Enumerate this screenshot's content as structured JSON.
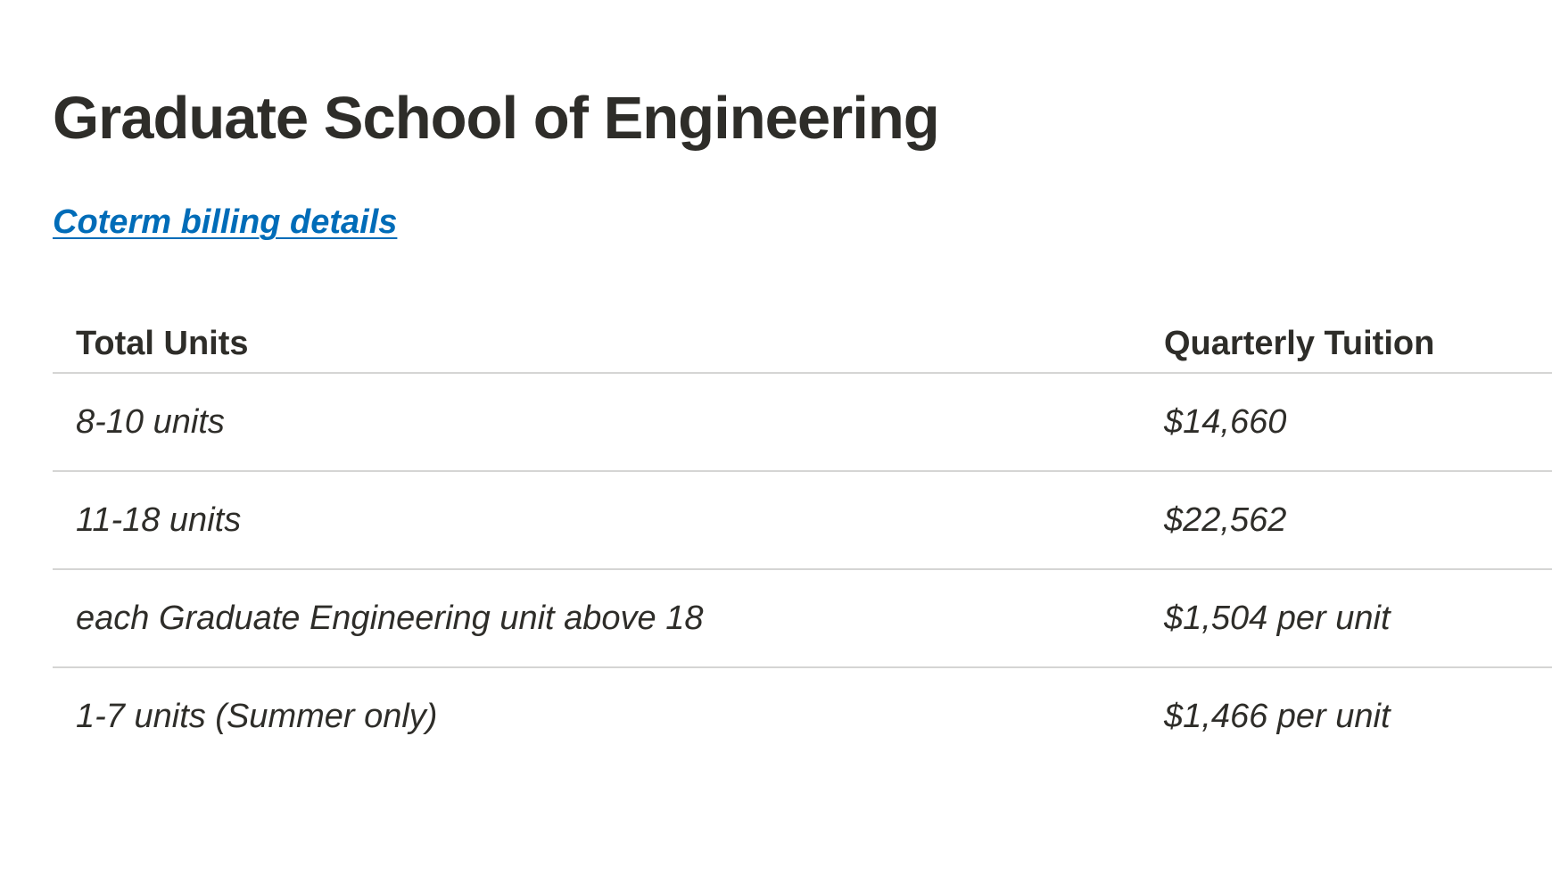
{
  "page": {
    "title": "Graduate School of Engineering",
    "link_label": "Coterm billing details"
  },
  "table": {
    "headers": {
      "units": "Total Units",
      "tuition": "Quarterly Tuition"
    },
    "rows": [
      {
        "units": "8-10 units",
        "tuition": "$14,660"
      },
      {
        "units": "11-18 units",
        "tuition": "$22,562"
      },
      {
        "units": "each Graduate Engineering unit above 18",
        "tuition": "$1,504 per unit"
      },
      {
        "units": "1-7 units (Summer only)",
        "tuition": "$1,466 per unit"
      }
    ]
  },
  "colors": {
    "text": "#2e2d29",
    "link": "#006cb8",
    "divider": "#d5d5d4"
  }
}
